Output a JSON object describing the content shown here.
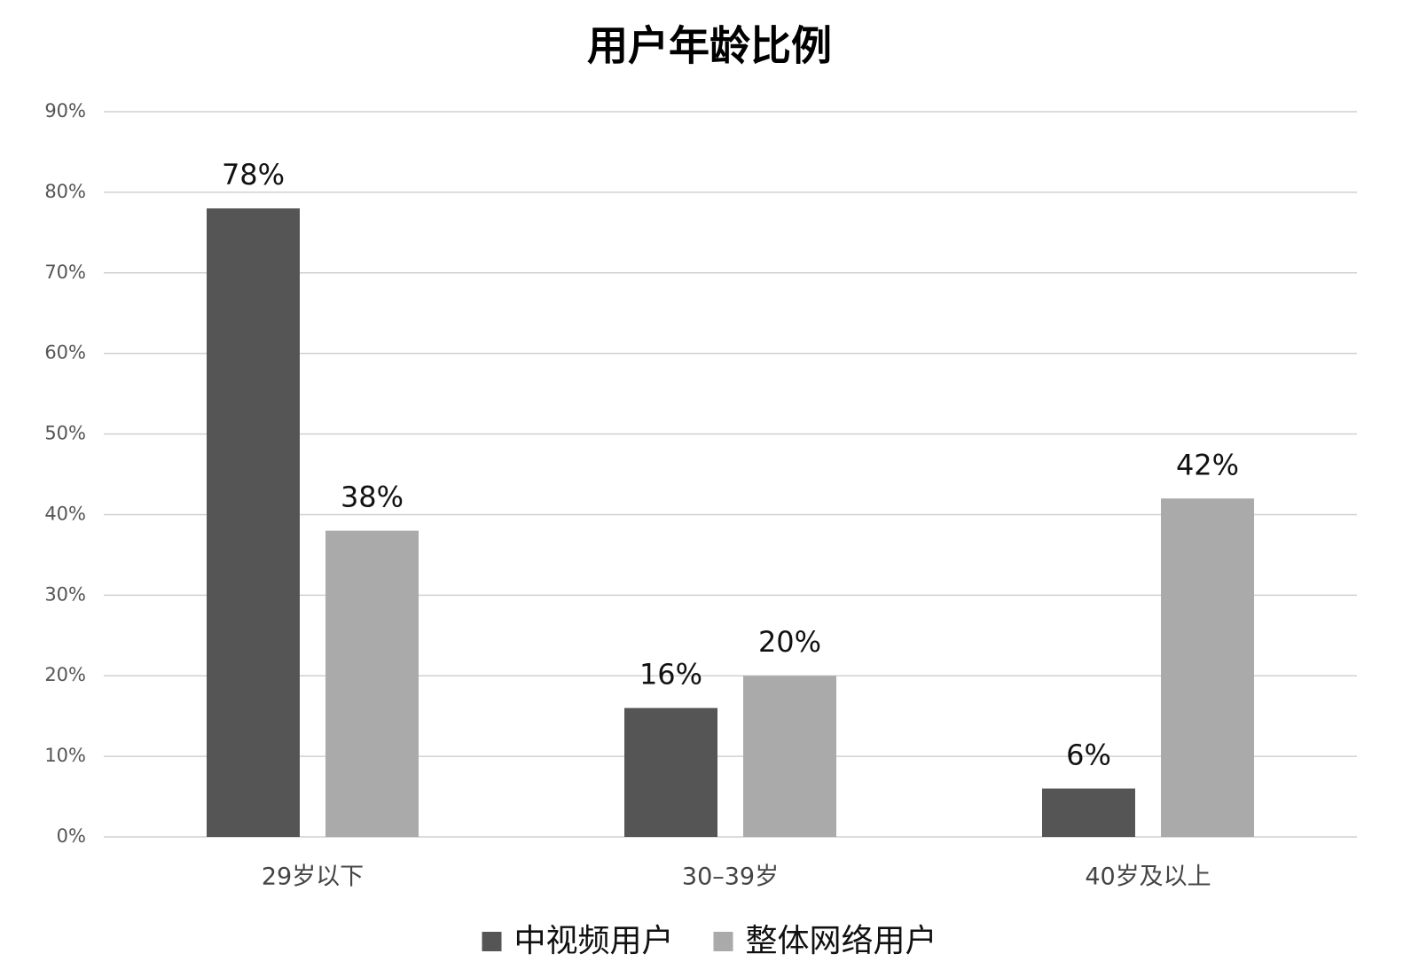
{
  "chart_data": {
    "type": "bar",
    "title": "用户年龄比例",
    "categories": [
      "29岁以下",
      "30–39岁",
      "40岁及以上"
    ],
    "series": [
      {
        "name": "中视频用户",
        "color": "#555555",
        "values": [
          78,
          16,
          6
        ],
        "value_labels": [
          "78%",
          "16%",
          "6%"
        ]
      },
      {
        "name": "整体网络用户",
        "color": "#aaaaaa",
        "values": [
          38,
          20,
          42
        ],
        "value_labels": [
          "38%",
          "20%",
          "42%"
        ]
      }
    ],
    "ylim": [
      0,
      90
    ],
    "yticks": [
      {
        "value": 0,
        "label": "0%"
      },
      {
        "value": 10,
        "label": "10%"
      },
      {
        "value": 20,
        "label": "20%"
      },
      {
        "value": 30,
        "label": "30%"
      },
      {
        "value": 40,
        "label": "40%"
      },
      {
        "value": 50,
        "label": "50%"
      },
      {
        "value": 60,
        "label": "60%"
      },
      {
        "value": 70,
        "label": "70%"
      },
      {
        "value": 80,
        "label": "80%"
      },
      {
        "value": 90,
        "label": "90%"
      }
    ],
    "grid": true,
    "legend": "bottom"
  }
}
